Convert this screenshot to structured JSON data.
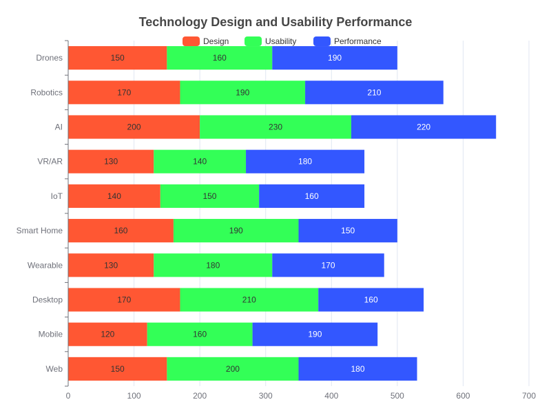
{
  "chart_data": {
    "type": "bar",
    "orientation": "horizontal",
    "stacked": true,
    "title": "Technology Design and Usability Performance",
    "categories": [
      "Web",
      "Mobile",
      "Desktop",
      "Wearable",
      "Smart Home",
      "IoT",
      "VR/AR",
      "AI",
      "Robotics",
      "Drones"
    ],
    "series": [
      {
        "name": "Design",
        "color": "#ff5733",
        "label_color": "#333333",
        "values": [
          150,
          120,
          170,
          130,
          160,
          140,
          130,
          200,
          170,
          150
        ]
      },
      {
        "name": "Usability",
        "color": "#33ff57",
        "label_color": "#333333",
        "values": [
          200,
          160,
          210,
          180,
          190,
          150,
          140,
          230,
          190,
          160
        ]
      },
      {
        "name": "Performance",
        "color": "#3357ff",
        "label_color": "#ffffff",
        "values": [
          180,
          190,
          160,
          170,
          150,
          160,
          180,
          220,
          210,
          190
        ]
      }
    ],
    "x_ticks": [
      0,
      100,
      200,
      300,
      400,
      500,
      600,
      700
    ],
    "xlim": [
      0,
      700
    ],
    "grid": "vertical",
    "legend_position": "top-center"
  }
}
